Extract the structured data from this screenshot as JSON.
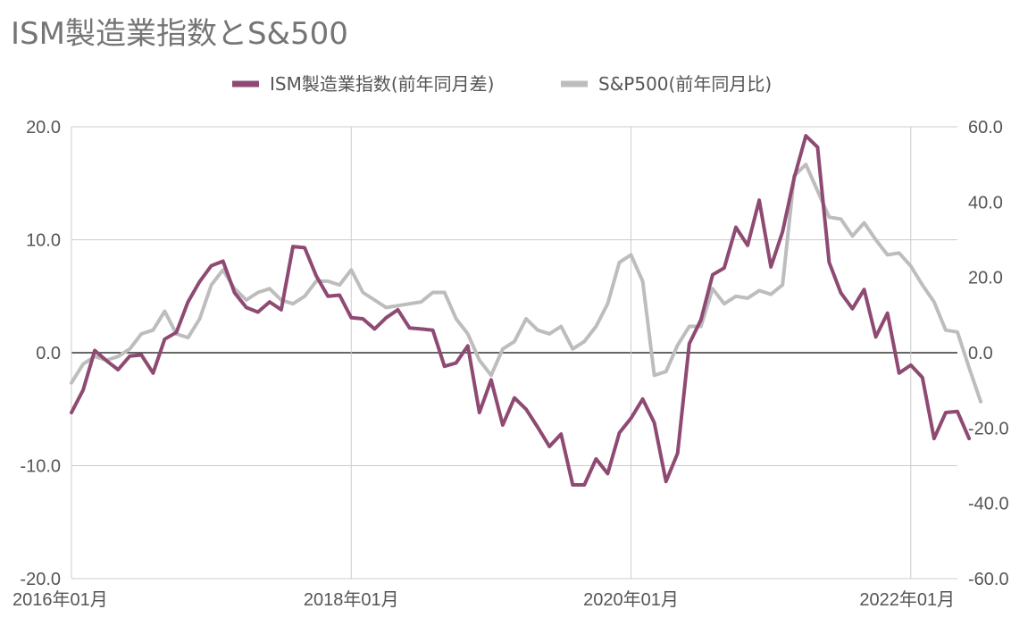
{
  "chart_data": {
    "type": "line",
    "title": "ISM製造業指数とS&500",
    "legend_position": "top",
    "x_tick_labels": [
      "2016年01月",
      "2018年01月",
      "2020年01月",
      "2022年01月"
    ],
    "x_range": [
      "2016-01",
      "2022-05"
    ],
    "y_left": {
      "range": [
        -20,
        20
      ],
      "ticks": [
        "20.0",
        "10.0",
        "0.0",
        "-10.0",
        "-20.0"
      ]
    },
    "y_right": {
      "range": [
        -60,
        60
      ],
      "ticks": [
        "60.0",
        "40.0",
        "20.0",
        "0.0",
        "-20.0",
        "-40.0",
        "-60.0"
      ]
    },
    "grid": true,
    "series": [
      {
        "name": "ISM製造業指数(前年同月差)",
        "axis": "left",
        "color": "#8e4a72",
        "start": "2016-01",
        "values": [
          -5.3,
          -3.3,
          0.2,
          -0.7,
          -1.5,
          -0.3,
          -0.2,
          -1.8,
          1.2,
          1.8,
          4.5,
          6.3,
          7.7,
          8.1,
          5.3,
          4.0,
          3.6,
          4.5,
          3.8,
          9.4,
          9.3,
          6.8,
          5.0,
          5.1,
          3.1,
          3.0,
          2.1,
          3.1,
          3.8,
          2.2,
          2.1,
          2.0,
          -1.2,
          -0.9,
          0.6,
          -5.3,
          -2.4,
          -6.4,
          -4.0,
          -5.0,
          -6.6,
          -8.3,
          -7.2,
          -11.7,
          -11.7,
          -9.4,
          -10.7,
          -7.1,
          -5.8,
          -4.1,
          -6.2,
          -11.4,
          -8.9,
          0.8,
          2.9,
          6.9,
          7.5,
          11.1,
          9.5,
          13.5,
          7.6,
          10.7,
          15.5,
          19.2,
          18.2,
          8.0,
          5.3,
          3.9,
          5.6,
          1.4,
          3.5,
          -1.8,
          -1.1,
          -2.2,
          -7.6,
          -5.3,
          -5.2,
          -7.6
        ]
      },
      {
        "name": "S&P500(前年同月比)",
        "axis": "right",
        "color": "#bdbdbd",
        "start": "2016-01",
        "values": [
          -8.0,
          -3.0,
          -1.0,
          -2.0,
          -1.0,
          1.0,
          5.0,
          6.0,
          11.0,
          5.0,
          4.0,
          9.0,
          18.0,
          22.0,
          17.0,
          14.0,
          16.0,
          17.0,
          14.0,
          13.0,
          15.0,
          19.0,
          19.0,
          18.0,
          22.0,
          16.0,
          14.0,
          12.0,
          12.5,
          13.0,
          13.5,
          16.0,
          16.0,
          9.0,
          5.0,
          -2.0,
          -6.0,
          1.0,
          3.0,
          9.0,
          6.0,
          5.0,
          7.0,
          1.0,
          3.0,
          7.0,
          13.0,
          24.0,
          26.0,
          19.0,
          -6.0,
          -5.0,
          2.0,
          7.0,
          7.0,
          17.0,
          13.0,
          15.0,
          14.5,
          16.5,
          15.5,
          18.0,
          47.0,
          50.0,
          43.0,
          36.0,
          35.5,
          31.0,
          34.5,
          30.0,
          26.0,
          26.5,
          23.0,
          18.0,
          13.5,
          6.0,
          5.5,
          -4.0,
          -13.0
        ]
      }
    ]
  }
}
